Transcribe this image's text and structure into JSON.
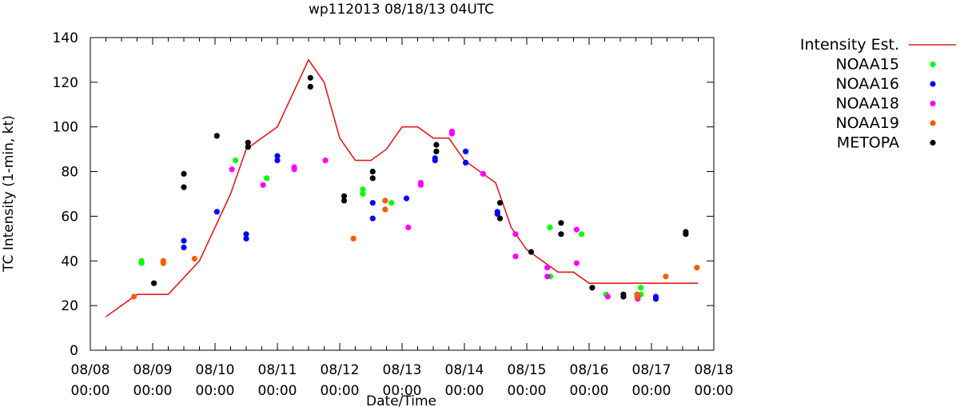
{
  "chart_data": {
    "type": "scatter",
    "title": "wp112013 08/18/13 04UTC",
    "xlabel": "Date/Time",
    "ylabel": "TC Intensity (1-min, kt)",
    "ylim": [
      0,
      140
    ],
    "yticks": [
      0,
      20,
      40,
      60,
      80,
      100,
      120,
      140
    ],
    "xlim": [
      0,
      10
    ],
    "xticks": [
      {
        "x": 0,
        "line1": "08/08",
        "line2": "00:00"
      },
      {
        "x": 1,
        "line1": "08/09",
        "line2": "00:00"
      },
      {
        "x": 2,
        "line1": "08/10",
        "line2": "00:00"
      },
      {
        "x": 3,
        "line1": "08/11",
        "line2": "00:00"
      },
      {
        "x": 4,
        "line1": "08/12",
        "line2": "00:00"
      },
      {
        "x": 5,
        "line1": "08/13",
        "line2": "00:00"
      },
      {
        "x": 6,
        "line1": "08/14",
        "line2": "00:00"
      },
      {
        "x": 7,
        "line1": "08/15",
        "line2": "00:00"
      },
      {
        "x": 8,
        "line1": "08/16",
        "line2": "00:00"
      },
      {
        "x": 9,
        "line1": "08/17",
        "line2": "00:00"
      },
      {
        "x": 10,
        "line1": "08/18",
        "line2": "00:00"
      }
    ],
    "legend_position": "right",
    "line_series": {
      "name": "Intensity Est.",
      "color": "#e41a1c",
      "points": [
        [
          0.25,
          15
        ],
        [
          0.75,
          25
        ],
        [
          1.25,
          25
        ],
        [
          1.75,
          40
        ],
        [
          2.0,
          55
        ],
        [
          2.25,
          70
        ],
        [
          2.5,
          90
        ],
        [
          3.0,
          100
        ],
        [
          3.5,
          130
        ],
        [
          3.75,
          120
        ],
        [
          4.0,
          95
        ],
        [
          4.25,
          85
        ],
        [
          4.5,
          85
        ],
        [
          4.75,
          90
        ],
        [
          5.0,
          100
        ],
        [
          5.25,
          100
        ],
        [
          5.5,
          95
        ],
        [
          5.75,
          95
        ],
        [
          6.0,
          85
        ],
        [
          6.25,
          80
        ],
        [
          6.5,
          75
        ],
        [
          6.75,
          55
        ],
        [
          7.0,
          45
        ],
        [
          7.25,
          40
        ],
        [
          7.5,
          35
        ],
        [
          7.75,
          35
        ],
        [
          8.0,
          30
        ],
        [
          8.5,
          30
        ],
        [
          9.0,
          30
        ],
        [
          9.5,
          30
        ],
        [
          9.75,
          30
        ]
      ]
    },
    "scatter_series": [
      {
        "name": "NOAA15",
        "color": "#00ff00",
        "points": [
          [
            0.82,
            40
          ],
          [
            0.82,
            39
          ],
          [
            2.33,
            85
          ],
          [
            2.83,
            77
          ],
          [
            4.37,
            72
          ],
          [
            4.37,
            70
          ],
          [
            4.83,
            66
          ],
          [
            7.37,
            55
          ],
          [
            7.38,
            33
          ],
          [
            7.88,
            52
          ],
          [
            8.27,
            25
          ],
          [
            8.83,
            28
          ],
          [
            8.83,
            25
          ]
        ]
      },
      {
        "name": "NOAA16",
        "color": "#0000ff",
        "points": [
          [
            1.5,
            49
          ],
          [
            1.5,
            46
          ],
          [
            2.03,
            62
          ],
          [
            2.5,
            52
          ],
          [
            2.5,
            50
          ],
          [
            3.0,
            87
          ],
          [
            3.0,
            85
          ],
          [
            4.53,
            66
          ],
          [
            4.53,
            59
          ],
          [
            5.07,
            68
          ],
          [
            5.53,
            86
          ],
          [
            5.53,
            85
          ],
          [
            6.02,
            89
          ],
          [
            6.02,
            84
          ],
          [
            6.53,
            62
          ],
          [
            6.53,
            61
          ],
          [
            9.07,
            24
          ],
          [
            9.07,
            23
          ]
        ]
      },
      {
        "name": "NOAA18",
        "color": "#ff00ff",
        "points": [
          [
            2.27,
            81
          ],
          [
            2.77,
            74
          ],
          [
            3.27,
            82
          ],
          [
            3.27,
            81
          ],
          [
            3.77,
            85
          ],
          [
            5.1,
            55
          ],
          [
            5.3,
            75
          ],
          [
            5.3,
            74
          ],
          [
            5.8,
            98
          ],
          [
            5.8,
            97
          ],
          [
            6.3,
            79
          ],
          [
            6.82,
            52
          ],
          [
            6.82,
            42
          ],
          [
            7.33,
            37
          ],
          [
            7.33,
            33
          ],
          [
            7.8,
            54
          ],
          [
            7.8,
            39
          ],
          [
            8.3,
            24
          ],
          [
            8.78,
            24
          ],
          [
            8.78,
            23
          ]
        ]
      },
      {
        "name": "NOAA19",
        "color": "#ff5a00",
        "points": [
          [
            0.7,
            24
          ],
          [
            1.17,
            40
          ],
          [
            1.17,
            39
          ],
          [
            1.67,
            41
          ],
          [
            4.22,
            50
          ],
          [
            4.73,
            67
          ],
          [
            4.73,
            63
          ],
          [
            8.77,
            25
          ],
          [
            8.77,
            24
          ],
          [
            9.23,
            33
          ],
          [
            9.73,
            37
          ]
        ]
      },
      {
        "name": "METOPA",
        "color": "#000000",
        "points": [
          [
            1.02,
            30
          ],
          [
            1.5,
            79
          ],
          [
            1.5,
            73
          ],
          [
            2.03,
            96
          ],
          [
            2.53,
            93
          ],
          [
            2.53,
            91
          ],
          [
            3.53,
            122
          ],
          [
            3.53,
            118
          ],
          [
            4.07,
            69
          ],
          [
            4.07,
            67
          ],
          [
            4.53,
            80
          ],
          [
            4.53,
            77
          ],
          [
            5.55,
            92
          ],
          [
            5.55,
            89
          ],
          [
            6.57,
            66
          ],
          [
            6.57,
            59
          ],
          [
            7.07,
            44
          ],
          [
            7.55,
            57
          ],
          [
            7.55,
            52
          ],
          [
            8.05,
            28
          ],
          [
            8.55,
            25
          ],
          [
            8.55,
            24
          ],
          [
            9.55,
            53
          ],
          [
            9.55,
            52
          ]
        ]
      }
    ]
  }
}
